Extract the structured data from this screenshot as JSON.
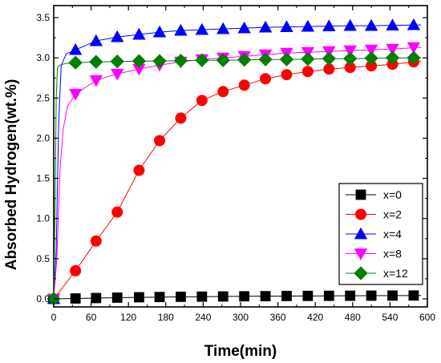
{
  "chart_data": {
    "type": "line",
    "title": "",
    "xlabel": "Time(min)",
    "ylabel": "Absorbed Hydrogen(wt.%)",
    "xlim": [
      0,
      600
    ],
    "ylim": [
      -0.1,
      3.65
    ],
    "xticks": [
      0,
      60,
      120,
      180,
      240,
      300,
      360,
      420,
      480,
      540,
      600
    ],
    "xtick_labels": [
      "0",
      "60",
      "120",
      "180",
      "240",
      "300",
      "360",
      "420",
      "480",
      "540",
      "600"
    ],
    "yticks": [
      0.0,
      0.5,
      1.0,
      1.5,
      2.0,
      2.5,
      3.0,
      3.5
    ],
    "ytick_labels": [
      "0.0",
      "0.5",
      "1.0",
      "1.5",
      "2.0",
      "2.5",
      "3.0",
      "3.5"
    ],
    "grid": false,
    "legend_position": "bottom-right",
    "series": [
      {
        "name": "x=0",
        "color": "#000000",
        "marker": "square",
        "curve_x": [
          0,
          100,
          200,
          300,
          400,
          500,
          590
        ],
        "curve_y": [
          0.0,
          0.015,
          0.025,
          0.032,
          0.036,
          0.04,
          0.042
        ],
        "x": [
          0,
          35,
          68,
          102,
          137,
          170,
          204,
          238,
          272,
          306,
          340,
          374,
          408,
          442,
          476,
          510,
          544,
          578
        ],
        "y": [
          0.0,
          0.005,
          0.01,
          0.015,
          0.02,
          0.023,
          0.026,
          0.028,
          0.03,
          0.032,
          0.034,
          0.036,
          0.037,
          0.038,
          0.039,
          0.04,
          0.041,
          0.042
        ]
      },
      {
        "name": "x=2",
        "color": "#ff0000",
        "marker": "circle",
        "curve_x": [
          0,
          35,
          68,
          102,
          137,
          170,
          204,
          238,
          272,
          306,
          340,
          374,
          408,
          442,
          476,
          510,
          544,
          590
        ],
        "curve_y": [
          0.0,
          0.35,
          0.72,
          1.08,
          1.6,
          1.97,
          2.25,
          2.47,
          2.58,
          2.66,
          2.74,
          2.79,
          2.83,
          2.86,
          2.88,
          2.9,
          2.92,
          2.96
        ],
        "x": [
          0,
          35,
          68,
          102,
          137,
          170,
          204,
          238,
          272,
          306,
          340,
          374,
          408,
          442,
          476,
          510,
          544,
          578
        ],
        "y": [
          0.0,
          0.35,
          0.72,
          1.08,
          1.6,
          1.97,
          2.25,
          2.47,
          2.58,
          2.66,
          2.74,
          2.79,
          2.83,
          2.86,
          2.88,
          2.9,
          2.92,
          2.95
        ]
      },
      {
        "name": "x=4",
        "color": "#0000ff",
        "marker": "triangle-up",
        "curve_x": [
          0,
          4,
          8,
          12,
          20,
          35,
          68,
          102,
          137,
          170,
          204,
          238,
          272,
          306,
          340,
          374,
          408,
          442,
          476,
          510,
          544,
          590
        ],
        "curve_y": [
          0.0,
          0.6,
          2.2,
          2.9,
          3.05,
          3.1,
          3.21,
          3.26,
          3.29,
          3.32,
          3.34,
          3.35,
          3.36,
          3.37,
          3.38,
          3.385,
          3.39,
          3.395,
          3.4,
          3.4,
          3.405,
          3.41
        ],
        "x": [
          0,
          35,
          68,
          102,
          137,
          170,
          204,
          238,
          272,
          306,
          340,
          374,
          408,
          442,
          476,
          510,
          544,
          578
        ],
        "y": [
          0.0,
          3.1,
          3.21,
          3.26,
          3.29,
          3.32,
          3.34,
          3.35,
          3.36,
          3.37,
          3.38,
          3.385,
          3.39,
          3.395,
          3.4,
          3.4,
          3.405,
          3.41
        ]
      },
      {
        "name": "x=8",
        "color": "#ff00ff",
        "marker": "triangle-down",
        "curve_x": [
          0,
          5,
          10,
          15,
          22,
          35,
          68,
          102,
          137,
          170,
          204,
          238,
          272,
          306,
          340,
          374,
          408,
          442,
          476,
          510,
          544,
          590
        ],
        "curve_y": [
          0.0,
          0.5,
          1.6,
          2.1,
          2.4,
          2.55,
          2.72,
          2.8,
          2.86,
          2.91,
          2.95,
          2.98,
          3.0,
          3.02,
          3.04,
          3.06,
          3.07,
          3.08,
          3.09,
          3.1,
          3.11,
          3.13
        ],
        "x": [
          0,
          35,
          68,
          102,
          137,
          170,
          204,
          238,
          272,
          306,
          340,
          374,
          408,
          442,
          476,
          510,
          544,
          578
        ],
        "y": [
          0.0,
          2.55,
          2.72,
          2.8,
          2.86,
          2.91,
          2.95,
          2.98,
          3.0,
          3.02,
          3.04,
          3.06,
          3.07,
          3.08,
          3.09,
          3.1,
          3.11,
          3.13
        ]
      },
      {
        "name": "x=12",
        "color": "#008000",
        "marker": "diamond",
        "curve_x": [
          0,
          2,
          4,
          6,
          10,
          20,
          35,
          68,
          102,
          137,
          170,
          204,
          238,
          272,
          306,
          340,
          374,
          408,
          442,
          476,
          510,
          544,
          590
        ],
        "curve_y": [
          0.0,
          1.0,
          2.5,
          2.88,
          2.91,
          2.93,
          2.94,
          2.95,
          2.955,
          2.96,
          2.96,
          2.965,
          2.97,
          2.97,
          2.975,
          2.98,
          2.98,
          2.985,
          2.99,
          2.99,
          2.995,
          3.0,
          3.0
        ],
        "x": [
          0,
          35,
          68,
          102,
          137,
          170,
          204,
          238,
          272,
          306,
          340,
          374,
          408,
          442,
          476,
          510,
          544,
          578
        ],
        "y": [
          0.0,
          2.94,
          2.95,
          2.955,
          2.96,
          2.96,
          2.965,
          2.97,
          2.97,
          2.975,
          2.98,
          2.98,
          2.985,
          2.99,
          2.99,
          2.995,
          3.0,
          3.0
        ]
      }
    ]
  }
}
